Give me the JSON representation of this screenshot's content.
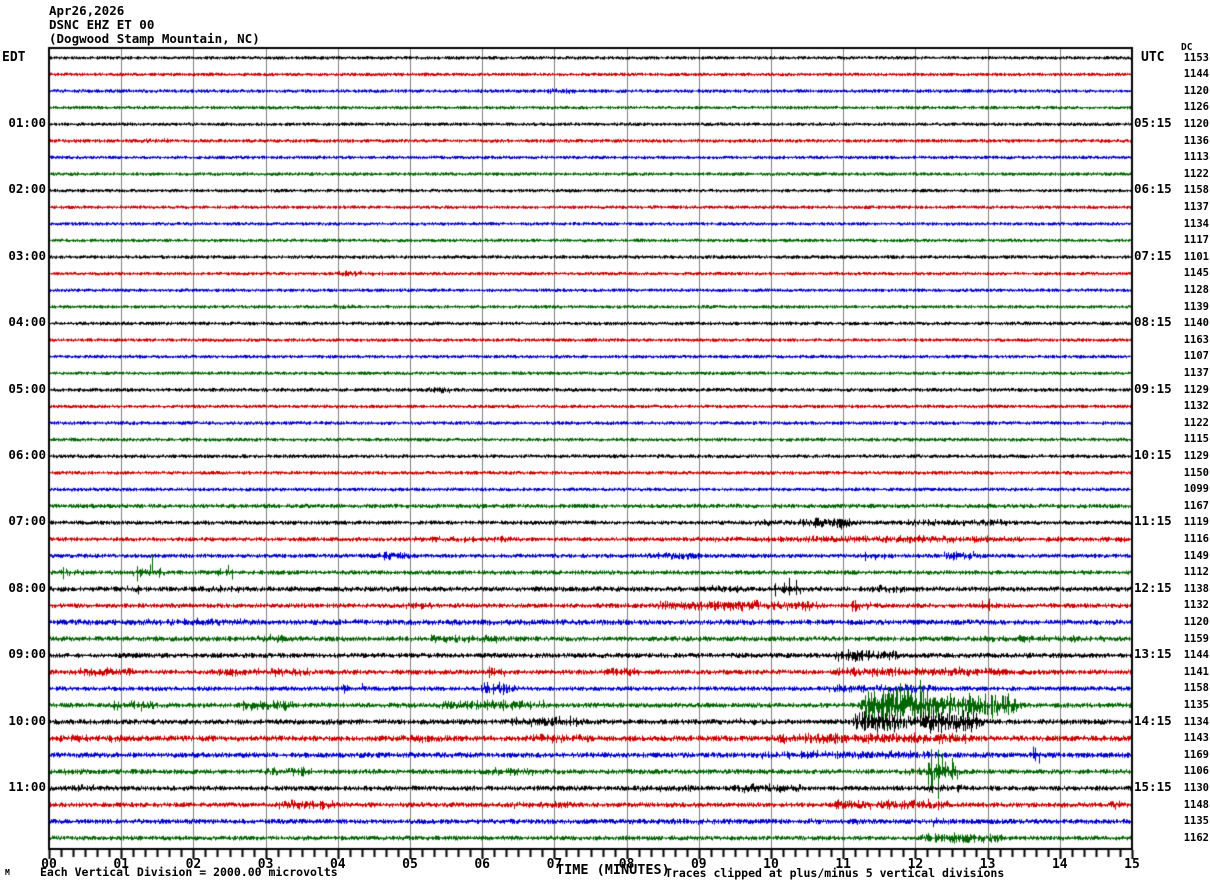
{
  "title": {
    "line1": "Apr26,2026",
    "line2": "DSNC EHZ ET 00",
    "line3": "(Dogwood Stamp Mountain, NC)"
  },
  "axes": {
    "left_header": "EDT",
    "right_header": "UTC",
    "dc_header": "DC",
    "x_title": "TIME (MINUTES)",
    "x_ticks": [
      "00",
      "01",
      "02",
      "03",
      "04",
      "05",
      "06",
      "07",
      "08",
      "09",
      "10",
      "11",
      "12",
      "13",
      "14",
      "15"
    ]
  },
  "footer": {
    "corner_mark": "M",
    "left_note": "Each Vertical Division = 2000.00 microvolts",
    "right_note": "Traces clipped at plus/minus 5 vertical divisions"
  },
  "chart_data": {
    "type": "line",
    "subtype": "helicorder-seismogram",
    "date": "Apr26,2026",
    "station": "DSNC EHZ ET 00",
    "location": "Dogwood Stamp Mountain, NC",
    "left_timezone": "EDT",
    "right_timezone": "UTC",
    "x_range_minutes": [
      0,
      15
    ],
    "minutes_per_line": 15,
    "grid": "vertical-gray-every-minute",
    "tick_interval_seconds": 10,
    "vertical_division_microvolts": 2000.0,
    "clip_divisions": 5,
    "trace_colors": [
      "#000000",
      "#cc0000",
      "#0000cc",
      "#006600"
    ],
    "grid_color": "#808080",
    "rows": [
      {
        "c": 0,
        "dc": 1153,
        "edt": null,
        "utc": null,
        "amp": 1.5,
        "ev": []
      },
      {
        "c": 1,
        "dc": 1144,
        "edt": null,
        "utc": null,
        "amp": 1.5,
        "ev": []
      },
      {
        "c": 2,
        "dc": 1120,
        "edt": null,
        "utc": null,
        "amp": 1.6,
        "ev": [
          [
            6.9,
            7.25,
            3.5
          ]
        ]
      },
      {
        "c": 3,
        "dc": 1126,
        "edt": null,
        "utc": null,
        "amp": 1.5,
        "ev": []
      },
      {
        "c": 0,
        "dc": 1120,
        "edt": "01:00",
        "utc": "05:15",
        "amp": 1.5,
        "ev": []
      },
      {
        "c": 1,
        "dc": 1136,
        "edt": null,
        "utc": null,
        "amp": 1.6,
        "ev": [
          [
            1.3,
            1.6,
            3
          ]
        ]
      },
      {
        "c": 2,
        "dc": 1113,
        "edt": null,
        "utc": null,
        "amp": 1.5,
        "ev": []
      },
      {
        "c": 3,
        "dc": 1122,
        "edt": null,
        "utc": null,
        "amp": 1.5,
        "ev": []
      },
      {
        "c": 0,
        "dc": 1158,
        "edt": "02:00",
        "utc": "06:15",
        "amp": 1.5,
        "ev": []
      },
      {
        "c": 1,
        "dc": 1137,
        "edt": null,
        "utc": null,
        "amp": 1.5,
        "ev": []
      },
      {
        "c": 2,
        "dc": 1134,
        "edt": null,
        "utc": null,
        "amp": 1.5,
        "ev": []
      },
      {
        "c": 3,
        "dc": 1117,
        "edt": null,
        "utc": null,
        "amp": 1.5,
        "ev": []
      },
      {
        "c": 0,
        "dc": 1101,
        "edt": "03:00",
        "utc": "07:15",
        "amp": 1.6,
        "ev": []
      },
      {
        "c": 1,
        "dc": 1145,
        "edt": null,
        "utc": null,
        "amp": 1.5,
        "ev": [
          [
            4.0,
            4.6,
            3
          ]
        ]
      },
      {
        "c": 2,
        "dc": 1128,
        "edt": null,
        "utc": null,
        "amp": 1.5,
        "ev": []
      },
      {
        "c": 3,
        "dc": 1139,
        "edt": null,
        "utc": null,
        "amp": 1.5,
        "ev": [
          [
            3.9,
            4.15,
            3.5
          ]
        ]
      },
      {
        "c": 0,
        "dc": 1140,
        "edt": "04:00",
        "utc": "08:15",
        "amp": 1.6,
        "ev": []
      },
      {
        "c": 1,
        "dc": 1163,
        "edt": null,
        "utc": null,
        "amp": 1.5,
        "ev": []
      },
      {
        "c": 2,
        "dc": 1107,
        "edt": null,
        "utc": null,
        "amp": 1.5,
        "ev": []
      },
      {
        "c": 3,
        "dc": 1137,
        "edt": null,
        "utc": null,
        "amp": 1.5,
        "ev": []
      },
      {
        "c": 0,
        "dc": 1129,
        "edt": "05:00",
        "utc": "09:15",
        "amp": 1.7,
        "ev": [
          [
            5.2,
            5.55,
            3.5
          ]
        ]
      },
      {
        "c": 1,
        "dc": 1132,
        "edt": null,
        "utc": null,
        "amp": 1.5,
        "ev": []
      },
      {
        "c": 2,
        "dc": 1122,
        "edt": null,
        "utc": null,
        "amp": 1.6,
        "ev": []
      },
      {
        "c": 3,
        "dc": 1115,
        "edt": null,
        "utc": null,
        "amp": 1.6,
        "ev": [
          [
            0.2,
            0.4,
            3
          ]
        ]
      },
      {
        "c": 0,
        "dc": 1129,
        "edt": "06:00",
        "utc": "10:15",
        "amp": 1.7,
        "ev": []
      },
      {
        "c": 1,
        "dc": 1150,
        "edt": null,
        "utc": null,
        "amp": 1.6,
        "ev": []
      },
      {
        "c": 2,
        "dc": 1099,
        "edt": null,
        "utc": null,
        "amp": 1.6,
        "ev": []
      },
      {
        "c": 3,
        "dc": 1167,
        "edt": null,
        "utc": null,
        "amp": 2.0,
        "ev": []
      },
      {
        "c": 0,
        "dc": 1119,
        "edt": "07:00",
        "utc": "11:15",
        "amp": 1.9,
        "ev": [
          [
            9.8,
            10.2,
            4
          ],
          [
            10.4,
            11.1,
            6
          ],
          [
            10.85,
            10.95,
            10
          ],
          [
            11.9,
            13.3,
            4
          ]
        ]
      },
      {
        "c": 1,
        "dc": 1116,
        "edt": null,
        "utc": null,
        "amp": 1.9,
        "ev": [
          [
            5.0,
            6.5,
            3.5
          ],
          [
            9.0,
            14.9,
            3
          ],
          [
            10.5,
            13.0,
            4.5
          ]
        ]
      },
      {
        "c": 2,
        "dc": 1149,
        "edt": null,
        "utc": null,
        "amp": 1.9,
        "ev": [
          [
            4.6,
            4.9,
            4.5
          ],
          [
            8.3,
            9.0,
            4
          ],
          [
            11.3,
            11.55,
            8
          ],
          [
            12.4,
            12.8,
            5
          ]
        ]
      },
      {
        "c": 3,
        "dc": 1112,
        "edt": null,
        "utc": null,
        "amp": 2.0,
        "ev": [
          [
            0.2,
            0.35,
            8
          ],
          [
            1.25,
            1.4,
            20
          ],
          [
            2.4,
            2.55,
            10
          ]
        ]
      },
      {
        "c": 0,
        "dc": 1138,
        "edt": "08:00",
        "utc": "12:15",
        "amp": 2.3,
        "ev": [
          [
            1.0,
            1.25,
            6
          ],
          [
            2.1,
            2.7,
            4
          ],
          [
            9.0,
            9.6,
            4
          ],
          [
            10.1,
            10.3,
            18
          ],
          [
            11.4,
            11.8,
            5
          ]
        ]
      },
      {
        "c": 1,
        "dc": 1132,
        "edt": null,
        "utc": null,
        "amp": 2.1,
        "ev": [
          [
            4.9,
            5.3,
            4
          ],
          [
            8.4,
            10.6,
            6
          ],
          [
            11.15,
            11.3,
            9
          ],
          [
            12.9,
            13.05,
            7
          ]
        ]
      },
      {
        "c": 2,
        "dc": 1120,
        "edt": null,
        "utc": null,
        "amp": 2.5,
        "ev": [
          [
            0.0,
            8.0,
            3.2
          ],
          [
            1.1,
            2.7,
            4.5
          ]
        ]
      },
      {
        "c": 3,
        "dc": 1159,
        "edt": null,
        "utc": null,
        "amp": 2.3,
        "ev": [
          [
            2.9,
            3.2,
            5
          ],
          [
            5.3,
            6.2,
            5
          ],
          [
            12.9,
            14.6,
            4
          ]
        ]
      },
      {
        "c": 0,
        "dc": 1144,
        "edt": "09:00",
        "utc": "13:15",
        "amp": 2.3,
        "ev": [
          [
            10.9,
            11.7,
            7
          ],
          [
            13.4,
            13.6,
            5
          ]
        ]
      },
      {
        "c": 1,
        "dc": 1141,
        "edt": null,
        "utc": null,
        "amp": 2.3,
        "ev": [
          [
            0.3,
            1.1,
            5
          ],
          [
            2.3,
            3.6,
            5
          ],
          [
            6.0,
            6.3,
            6
          ],
          [
            7.7,
            8.1,
            5
          ],
          [
            10.9,
            13.2,
            5.5
          ]
        ]
      },
      {
        "c": 2,
        "dc": 1158,
        "edt": null,
        "utc": null,
        "amp": 2.1,
        "ev": [
          [
            4.1,
            4.3,
            9
          ],
          [
            6.0,
            6.35,
            7
          ],
          [
            10.8,
            12.2,
            5
          ]
        ]
      },
      {
        "c": 3,
        "dc": 1135,
        "edt": null,
        "utc": null,
        "amp": 2.3,
        "ev": [
          [
            0.9,
            1.4,
            6
          ],
          [
            2.7,
            3.3,
            6
          ],
          [
            5.4,
            6.6,
            6
          ],
          [
            6.7,
            6.9,
            9
          ],
          [
            11.3,
            12.1,
            28
          ],
          [
            12.05,
            13.3,
            16
          ]
        ]
      },
      {
        "c": 0,
        "dc": 1134,
        "edt": "10:00",
        "utc": "14:15",
        "amp": 2.5,
        "ev": [
          [
            6.4,
            7.3,
            6
          ],
          [
            9.4,
            9.7,
            5
          ],
          [
            11.2,
            12.8,
            13
          ]
        ]
      },
      {
        "c": 1,
        "dc": 1143,
        "edt": null,
        "utc": null,
        "amp": 2.7,
        "ev": [
          [
            0.1,
            1.0,
            5
          ],
          [
            4.9,
            5.5,
            5
          ],
          [
            6.7,
            7.4,
            5
          ],
          [
            10.0,
            12.7,
            6
          ],
          [
            12.5,
            12.65,
            11
          ]
        ]
      },
      {
        "c": 2,
        "dc": 1169,
        "edt": null,
        "utc": null,
        "amp": 2.5,
        "ev": [
          [
            9.8,
            12.2,
            5
          ],
          [
            13.6,
            13.72,
            12
          ]
        ]
      },
      {
        "c": 3,
        "dc": 1106,
        "edt": null,
        "utc": null,
        "amp": 2.3,
        "ev": [
          [
            0.15,
            0.5,
            4
          ],
          [
            3.0,
            3.6,
            5
          ],
          [
            6.0,
            6.7,
            5
          ],
          [
            11.9,
            12.5,
            6
          ],
          [
            12.25,
            12.38,
            46
          ]
        ]
      },
      {
        "c": 0,
        "dc": 1130,
        "edt": "11:00",
        "utc": "15:15",
        "amp": 2.3,
        "ev": [
          [
            0.2,
            0.6,
            4
          ],
          [
            8.1,
            8.9,
            4
          ],
          [
            9.5,
            10.4,
            5
          ],
          [
            12.2,
            12.7,
            5
          ]
        ]
      },
      {
        "c": 1,
        "dc": 1148,
        "edt": null,
        "utc": null,
        "amp": 2.3,
        "ev": [
          [
            3.2,
            3.9,
            6
          ],
          [
            6.4,
            7.3,
            4
          ],
          [
            10.9,
            12.4,
            6
          ],
          [
            14.65,
            14.85,
            8
          ]
        ]
      },
      {
        "c": 2,
        "dc": 1135,
        "edt": null,
        "utc": null,
        "amp": 2.3,
        "ev": [
          [
            8.0,
            11.2,
            3.2
          ],
          [
            12.25,
            12.4,
            10
          ]
        ]
      },
      {
        "c": 3,
        "dc": 1162,
        "edt": null,
        "utc": null,
        "amp": 2.1,
        "ev": [
          [
            12.1,
            13.1,
            6
          ]
        ]
      }
    ]
  }
}
